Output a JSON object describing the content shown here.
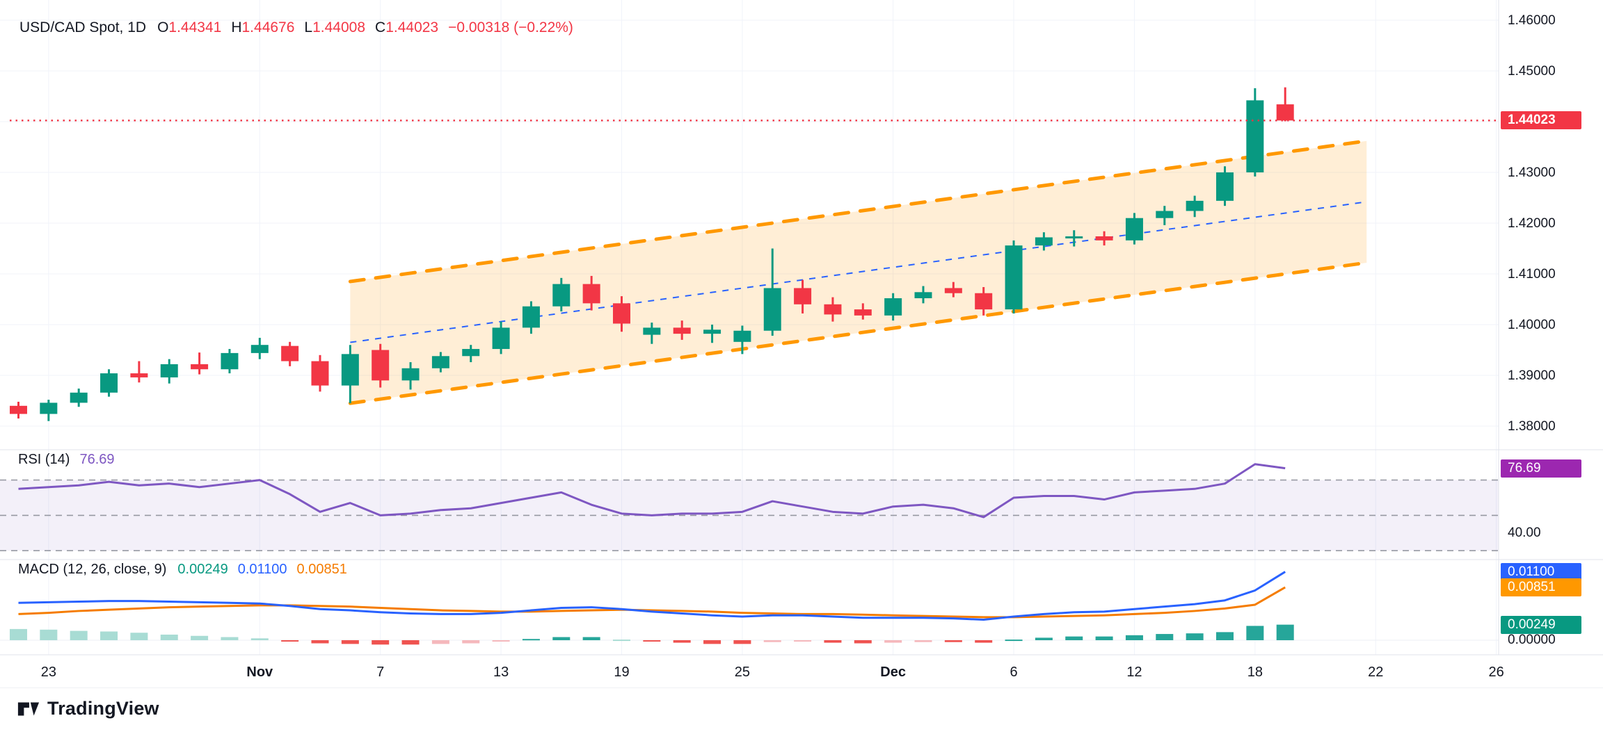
{
  "colors": {
    "background": "#ffffff",
    "up": "#089981",
    "down": "#f23645",
    "grid": "#f0f3fa",
    "separator": "#e0e3eb",
    "axis_text": "#131722",
    "channel": "#ff9800",
    "channel_fill": "rgba(255,152,0,0.16)",
    "channel_mid": "#2962ff",
    "last_price_line": "#f23645",
    "rsi_line": "#7e57c2",
    "rsi_badge": "#9c27b0",
    "rsi_band_fill": "rgba(126,87,194,0.09)",
    "band_line": "#787b86",
    "macd_line": "#2962ff",
    "signal_line": "#f57c00",
    "signal_badge": "#ff9800",
    "hist_pos_grow": "#26a69a",
    "hist_pos_fall": "#a8dcd4",
    "hist_neg_grow": "#ef5350",
    "hist_neg_fall": "#f5b8bc"
  },
  "legend": {
    "symbol": "USD/CAD Spot, 1D",
    "o_label": "O",
    "o": "1.44341",
    "h_label": "H",
    "h": "1.44676",
    "l_label": "L",
    "l": "1.44008",
    "c_label": "C",
    "c": "1.44023",
    "change": "−0.00318 (−0.22%)"
  },
  "rsi_legend": {
    "title": "RSI (14)",
    "value": "76.69"
  },
  "macd_legend": {
    "title": "MACD (12, 26, close, 9)",
    "hist": "0.00249",
    "macd": "0.01100",
    "signal": "0.00851"
  },
  "badges": {
    "price": "1.44023",
    "rsi": "76.69",
    "rsi_level": "40.00",
    "macd_line": "0.01100",
    "macd_signal": "0.00851",
    "macd_hist": "0.00249",
    "macd_zero": "0.00000"
  },
  "footer": {
    "brand": "TradingView"
  },
  "chart_data": {
    "type": "candlestick",
    "title": "USD/CAD Spot, 1D",
    "last_bar": {
      "open": 1.44341,
      "high": 1.44676,
      "low": 1.44008,
      "close": 1.44023,
      "change": -0.00318,
      "change_pct": -0.22
    },
    "price_axis": {
      "min": 1.376,
      "max": 1.462,
      "last_price": 1.44023,
      "ticks": [
        1.38,
        1.39,
        1.4,
        1.41,
        1.42,
        1.43,
        1.44,
        1.45,
        1.46
      ]
    },
    "time_ticks": [
      {
        "label": "23",
        "i": 1
      },
      {
        "label": "Nov",
        "i": 8,
        "bold": true
      },
      {
        "label": "7",
        "i": 12
      },
      {
        "label": "13",
        "i": 16
      },
      {
        "label": "19",
        "i": 20
      },
      {
        "label": "25",
        "i": 24
      },
      {
        "label": "Dec",
        "i": 29,
        "bold": true
      },
      {
        "label": "6",
        "i": 33
      },
      {
        "label": "12",
        "i": 37
      },
      {
        "label": "18",
        "i": 41
      },
      {
        "label": "22",
        "i": 45
      },
      {
        "label": "26",
        "i": 49
      }
    ],
    "candles": [
      [
        1.384,
        1.3848,
        1.3815,
        1.3824
      ],
      [
        1.3824,
        1.3852,
        1.381,
        1.3846
      ],
      [
        1.3846,
        1.3874,
        1.3838,
        1.3866
      ],
      [
        1.3866,
        1.3912,
        1.3858,
        1.3904
      ],
      [
        1.3904,
        1.3928,
        1.3886,
        1.3896
      ],
      [
        1.3896,
        1.3932,
        1.3884,
        1.3922
      ],
      [
        1.3922,
        1.3945,
        1.3902,
        1.3912
      ],
      [
        1.3912,
        1.3952,
        1.3904,
        1.3944
      ],
      [
        1.3944,
        1.3974,
        1.3932,
        1.396
      ],
      [
        1.3958,
        1.3966,
        1.3918,
        1.3928
      ],
      [
        1.3928,
        1.394,
        1.3868,
        1.388
      ],
      [
        1.388,
        1.396,
        1.3845,
        1.3942
      ],
      [
        1.395,
        1.3962,
        1.3876,
        1.389
      ],
      [
        1.389,
        1.3926,
        1.3872,
        1.3914
      ],
      [
        1.3914,
        1.3946,
        1.3906,
        1.3938
      ],
      [
        1.3938,
        1.396,
        1.3926,
        1.3952
      ],
      [
        1.3952,
        1.4006,
        1.3942,
        1.3994
      ],
      [
        1.3994,
        1.4046,
        1.3982,
        1.4036
      ],
      [
        1.4036,
        1.4092,
        1.4026,
        1.408
      ],
      [
        1.408,
        1.4096,
        1.4028,
        1.4042
      ],
      [
        1.4042,
        1.4056,
        1.3986,
        1.4002
      ],
      [
        1.398,
        1.4004,
        1.3962,
        1.3994
      ],
      [
        1.3994,
        1.4008,
        1.397,
        1.3982
      ],
      [
        1.3982,
        1.4,
        1.3964,
        1.399
      ],
      [
        1.3966,
        1.3998,
        1.3942,
        1.3988
      ],
      [
        1.3988,
        1.415,
        1.3978,
        1.4072
      ],
      [
        1.4072,
        1.4088,
        1.4022,
        1.404
      ],
      [
        1.404,
        1.4054,
        1.4006,
        1.402
      ],
      [
        1.403,
        1.4042,
        1.401,
        1.4018
      ],
      [
        1.4018,
        1.4062,
        1.4008,
        1.4052
      ],
      [
        1.4052,
        1.4076,
        1.4042,
        1.4064
      ],
      [
        1.4072,
        1.4084,
        1.4054,
        1.4062
      ],
      [
        1.4062,
        1.4074,
        1.4018,
        1.403
      ],
      [
        1.403,
        1.4166,
        1.4022,
        1.4156
      ],
      [
        1.4156,
        1.4182,
        1.4146,
        1.4172
      ],
      [
        1.4172,
        1.4186,
        1.4154,
        1.4174
      ],
      [
        1.4174,
        1.4184,
        1.4156,
        1.4166
      ],
      [
        1.4166,
        1.422,
        1.4158,
        1.421
      ],
      [
        1.421,
        1.4234,
        1.4196,
        1.4224
      ],
      [
        1.4224,
        1.4254,
        1.4212,
        1.4244
      ],
      [
        1.4244,
        1.4312,
        1.4234,
        1.43
      ],
      [
        1.43,
        1.4466,
        1.4292,
        1.4442
      ],
      [
        1.44341,
        1.44676,
        1.44008,
        1.44023
      ]
    ],
    "channel": {
      "i1": 11,
      "p1": 1.3845,
      "i2": 44.7,
      "p2": 1.4122,
      "width": 0.024
    },
    "rsi": {
      "period": 14,
      "last": 76.69,
      "bands": [
        70,
        50,
        30
      ],
      "band_fill_range": [
        30,
        70
      ],
      "axis_label": 40,
      "values": [
        65,
        66,
        67,
        69,
        67,
        68,
        66,
        68,
        70,
        62,
        52,
        57,
        50,
        51,
        53,
        54,
        57,
        60,
        63,
        56,
        51,
        50,
        51,
        51,
        52,
        58,
        55,
        52,
        51,
        55,
        56,
        54,
        49,
        60,
        61,
        61,
        59,
        63,
        64,
        65,
        68,
        79,
        76.69
      ]
    },
    "macd": {
      "params": "12, 26, close, 9",
      "last_macd": 0.011,
      "last_signal": 0.00851,
      "last_hist": 0.00249,
      "macd": [
        0.006,
        0.0061,
        0.0062,
        0.0063,
        0.0063,
        0.0062,
        0.0061,
        0.006,
        0.0059,
        0.0055,
        0.005,
        0.0048,
        0.0045,
        0.0043,
        0.0042,
        0.0042,
        0.0044,
        0.0048,
        0.0052,
        0.0053,
        0.005,
        0.0046,
        0.0043,
        0.004,
        0.0038,
        0.004,
        0.004,
        0.0038,
        0.0036,
        0.0036,
        0.0036,
        0.0035,
        0.0033,
        0.0038,
        0.0042,
        0.0045,
        0.0046,
        0.005,
        0.0054,
        0.0058,
        0.0064,
        0.008,
        0.011
      ],
      "signal": [
        0.0042,
        0.0044,
        0.0047,
        0.0049,
        0.0051,
        0.0053,
        0.0054,
        0.0055,
        0.0056,
        0.0056,
        0.0055,
        0.0054,
        0.0052,
        0.005,
        0.0048,
        0.0047,
        0.0046,
        0.0046,
        0.0047,
        0.0048,
        0.0049,
        0.0048,
        0.0047,
        0.0046,
        0.0044,
        0.0043,
        0.0042,
        0.0042,
        0.0041,
        0.004,
        0.0039,
        0.0038,
        0.0037,
        0.0037,
        0.0038,
        0.0039,
        0.004,
        0.0042,
        0.0044,
        0.0047,
        0.0051,
        0.0057,
        0.0085
      ]
    }
  }
}
